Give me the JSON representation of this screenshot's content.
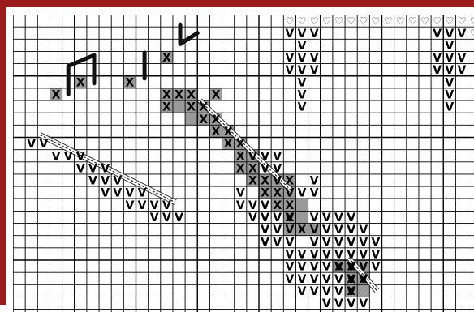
{
  "pattern": {
    "colors": {
      "border": "#9b1c1c",
      "grid": "#000000",
      "shaded_cell": "#9a9a9a",
      "stitch_symbol": "#000000",
      "background": "#ffffff"
    },
    "legend_glyphs": {
      "v_stitch": "V",
      "x_stitch": "X",
      "heart_stitch": "♡"
    },
    "cols": 38,
    "rows": 24,
    "v_stitches": [
      [
        22,
        1
      ],
      [
        23,
        1
      ],
      [
        24,
        1
      ],
      [
        34,
        1
      ],
      [
        35,
        1
      ],
      [
        36,
        1
      ],
      [
        23,
        2
      ],
      [
        35,
        2
      ],
      [
        22,
        3
      ],
      [
        23,
        3
      ],
      [
        24,
        3
      ],
      [
        34,
        3
      ],
      [
        35,
        3
      ],
      [
        36,
        3
      ],
      [
        22,
        4
      ],
      [
        23,
        4
      ],
      [
        24,
        4
      ],
      [
        34,
        4
      ],
      [
        35,
        4
      ],
      [
        36,
        4
      ],
      [
        23,
        5
      ],
      [
        35,
        5
      ],
      [
        23,
        6
      ],
      [
        35,
        6
      ],
      [
        23,
        7
      ],
      [
        35,
        7
      ],
      [
        1,
        10
      ],
      [
        2,
        10
      ],
      [
        3,
        11
      ],
      [
        4,
        11
      ],
      [
        5,
        11
      ],
      [
        19,
        11
      ],
      [
        20,
        11
      ],
      [
        21,
        11
      ],
      [
        5,
        12
      ],
      [
        6,
        12
      ],
      [
        7,
        12
      ],
      [
        20,
        12
      ],
      [
        21,
        12
      ],
      [
        6,
        13
      ],
      [
        7,
        13
      ],
      [
        8,
        13
      ],
      [
        21,
        13
      ],
      [
        24,
        13
      ],
      [
        7,
        14
      ],
      [
        8,
        14
      ],
      [
        9,
        14
      ],
      [
        10,
        14
      ],
      [
        18,
        14
      ],
      [
        22,
        14
      ],
      [
        23,
        14
      ],
      [
        24,
        14
      ],
      [
        9,
        15
      ],
      [
        10,
        15
      ],
      [
        11,
        15
      ],
      [
        12,
        15
      ],
      [
        18,
        15
      ],
      [
        19,
        15
      ],
      [
        20,
        15
      ],
      [
        11,
        16
      ],
      [
        12,
        16
      ],
      [
        13,
        16
      ],
      [
        19,
        16
      ],
      [
        20,
        16
      ],
      [
        21,
        16
      ],
      [
        22,
        16
      ],
      [
        24,
        16
      ],
      [
        25,
        16
      ],
      [
        26,
        16
      ],
      [
        27,
        16
      ],
      [
        20,
        17
      ],
      [
        21,
        17
      ],
      [
        22,
        17
      ],
      [
        24,
        17
      ],
      [
        25,
        17
      ],
      [
        26,
        17
      ],
      [
        27,
        17
      ],
      [
        28,
        17
      ],
      [
        20,
        18
      ],
      [
        21,
        18
      ],
      [
        22,
        18
      ],
      [
        24,
        18
      ],
      [
        25,
        18
      ],
      [
        26,
        18
      ],
      [
        27,
        18
      ],
      [
        28,
        18
      ],
      [
        29,
        18
      ],
      [
        22,
        19
      ],
      [
        23,
        19
      ],
      [
        24,
        19
      ],
      [
        25,
        19
      ],
      [
        26,
        19
      ],
      [
        27,
        19
      ],
      [
        28,
        19
      ],
      [
        29,
        19
      ],
      [
        22,
        20
      ],
      [
        23,
        20
      ],
      [
        24,
        20
      ],
      [
        25,
        20
      ],
      [
        26,
        20
      ],
      [
        27,
        20
      ],
      [
        28,
        20
      ],
      [
        29,
        20
      ],
      [
        22,
        21
      ],
      [
        23,
        21
      ],
      [
        24,
        21
      ],
      [
        25,
        21
      ],
      [
        26,
        21
      ],
      [
        27,
        21
      ],
      [
        28,
        21
      ],
      [
        23,
        22
      ],
      [
        24,
        22
      ],
      [
        25,
        22
      ],
      [
        26,
        22
      ],
      [
        27,
        22
      ],
      [
        25,
        23
      ],
      [
        26,
        23
      ],
      [
        27,
        23
      ],
      [
        28,
        23
      ]
    ],
    "x_stitches": [
      [
        3,
        6
      ],
      [
        5,
        5
      ],
      [
        9,
        5
      ],
      [
        12,
        3
      ],
      [
        12,
        6
      ],
      [
        13,
        6
      ],
      [
        14,
        6
      ],
      [
        16,
        6
      ],
      [
        12,
        7
      ],
      [
        14,
        7
      ],
      [
        15,
        7
      ],
      [
        15,
        8
      ],
      [
        16,
        8
      ],
      [
        16,
        9
      ],
      [
        17,
        9
      ],
      [
        17,
        10
      ],
      [
        18,
        10
      ],
      [
        18,
        11
      ],
      [
        18,
        12
      ],
      [
        19,
        12
      ],
      [
        19,
        13
      ],
      [
        20,
        13
      ],
      [
        22,
        13
      ],
      [
        20,
        14
      ],
      [
        21,
        14
      ],
      [
        21,
        15
      ],
      [
        22,
        15
      ],
      [
        22,
        16
      ],
      [
        23,
        17
      ],
      [
        26,
        20
      ],
      [
        27,
        20
      ],
      [
        27,
        21
      ],
      [
        28,
        21
      ],
      [
        27,
        22
      ]
    ],
    "shaded_cells": [
      [
        3,
        6
      ],
      [
        5,
        5
      ],
      [
        9,
        5
      ],
      [
        12,
        3
      ],
      [
        12,
        6
      ],
      [
        13,
        6
      ],
      [
        14,
        6
      ],
      [
        16,
        6
      ],
      [
        12,
        7
      ],
      [
        13,
        7
      ],
      [
        14,
        7
      ],
      [
        15,
        7
      ],
      [
        14,
        8
      ],
      [
        15,
        8
      ],
      [
        16,
        8
      ],
      [
        16,
        9
      ],
      [
        17,
        9
      ],
      [
        17,
        10
      ],
      [
        18,
        10
      ],
      [
        18,
        11
      ],
      [
        19,
        11
      ],
      [
        18,
        12
      ],
      [
        19,
        12
      ],
      [
        19,
        13
      ],
      [
        20,
        13
      ],
      [
        21,
        13
      ],
      [
        22,
        13
      ],
      [
        20,
        14
      ],
      [
        21,
        14
      ],
      [
        22,
        14
      ],
      [
        21,
        15
      ],
      [
        22,
        15
      ],
      [
        23,
        15
      ],
      [
        22,
        16
      ],
      [
        23,
        16
      ],
      [
        22,
        17
      ],
      [
        23,
        17
      ],
      [
        24,
        17
      ],
      [
        26,
        20
      ],
      [
        27,
        20
      ],
      [
        28,
        20
      ],
      [
        27,
        21
      ],
      [
        28,
        21
      ],
      [
        27,
        22
      ],
      [
        28,
        22
      ]
    ],
    "heart_stitches": [
      [
        22,
        0
      ],
      [
        23,
        0
      ],
      [
        24,
        0
      ],
      [
        25,
        0
      ],
      [
        26,
        0
      ],
      [
        27,
        0
      ],
      [
        28,
        0
      ],
      [
        29,
        0
      ],
      [
        30,
        0
      ],
      [
        31,
        0
      ],
      [
        32,
        0
      ],
      [
        33,
        0
      ],
      [
        34,
        0
      ],
      [
        35,
        0
      ],
      [
        36,
        0
      ],
      [
        37,
        0
      ],
      [
        37,
        1
      ]
    ],
    "bind_lines": [
      {
        "points": [
          [
            4.5,
            6.5
          ],
          [
            4.5,
            4.2
          ],
          [
            6.6,
            3.3
          ],
          [
            6.6,
            5.6
          ]
        ]
      },
      {
        "points": [
          [
            10.7,
            3.1
          ],
          [
            10.7,
            5.2
          ]
        ]
      },
      {
        "points": [
          [
            13.6,
            0.8
          ],
          [
            13.6,
            2.4
          ],
          [
            15.0,
            1.5
          ]
        ]
      }
    ],
    "cables": [
      {
        "from": [
          15.2,
          7.0
        ],
        "to": [
          22.6,
          14.3
        ]
      },
      {
        "from": [
          2.2,
          9.8
        ],
        "to": [
          13.2,
          15.3
        ]
      },
      {
        "from": [
          27.3,
          19.8
        ],
        "to": [
          29.6,
          22.5
        ]
      }
    ]
  }
}
